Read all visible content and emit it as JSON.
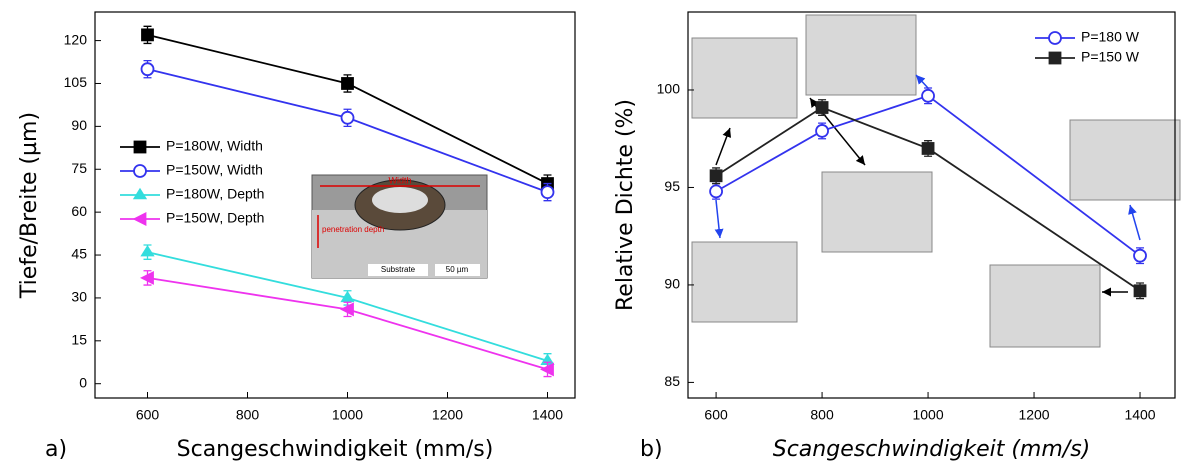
{
  "chart_data": [
    {
      "type": "line",
      "panel_label": "a)",
      "x_label": "Scangeschwindigkeit (mm/s)",
      "y_label": "Tiefe/Breite (µm)",
      "x": [
        600,
        1000,
        1400
      ],
      "xlim": [
        495,
        1455
      ],
      "xticks": [
        600,
        800,
        1000,
        1200,
        1400
      ],
      "ylim": [
        -5,
        130
      ],
      "yticks": [
        0,
        15,
        30,
        45,
        60,
        75,
        90,
        105,
        120
      ],
      "legend": "center left",
      "series": [
        {
          "name": "P=180W, Width",
          "color": "#000000",
          "marker": "square",
          "filled": true,
          "values": [
            122,
            105,
            70
          ],
          "errors": [
            3,
            3,
            3
          ]
        },
        {
          "name": "P=150W, Width",
          "color": "#3333ee",
          "marker": "circle",
          "filled": false,
          "values": [
            110,
            93,
            67
          ],
          "errors": [
            3,
            3,
            3
          ]
        },
        {
          "name": "P=180W, Depth",
          "color": "#33dddd",
          "marker": "star",
          "filled": true,
          "values": [
            46,
            30,
            8
          ],
          "errors": [
            2.5,
            2.5,
            2.5
          ]
        },
        {
          "name": "P=150W, Depth",
          "color": "#ee33ee",
          "marker": "triangle-left",
          "filled": true,
          "values": [
            37,
            26,
            5
          ],
          "errors": [
            2.5,
            2.5,
            2.5
          ]
        }
      ],
      "inset_labels": [
        "Width",
        "penetration depth",
        "Substrate",
        "50 µm"
      ]
    },
    {
      "type": "line",
      "panel_label": "b)",
      "x_label": "Scangeschwindigkeit (mm/s)",
      "y_label": "Relative Dichte (%)",
      "x": [
        600,
        800,
        1000,
        1400
      ],
      "xlim": [
        547,
        1466
      ],
      "xticks": [
        600,
        800,
        1000,
        1200,
        1400
      ],
      "ylim": [
        84.2,
        104
      ],
      "yticks": [
        85,
        90,
        95,
        100
      ],
      "legend": "upper right",
      "series": [
        {
          "name": "P=180 W",
          "color": "#3333ee",
          "marker": "circle",
          "filled": false,
          "values": [
            94.8,
            97.9,
            99.7,
            91.5
          ],
          "errors": [
            0.4,
            0.4,
            0.4,
            0.4
          ]
        },
        {
          "name": "P=150 W",
          "color": "#222222",
          "marker": "square",
          "filled": true,
          "values": [
            95.6,
            99.1,
            97.0,
            89.7
          ],
          "errors": [
            0.4,
            0.4,
            0.4,
            0.4
          ]
        }
      ]
    }
  ]
}
